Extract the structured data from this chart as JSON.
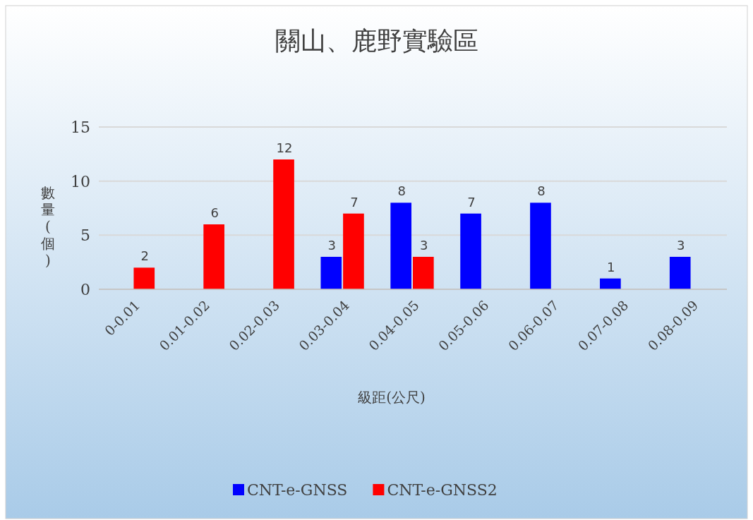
{
  "chart_data": {
    "type": "bar",
    "title": "關山、鹿野實驗區",
    "xlabel": "級距(公尺)",
    "ylabel": "數量(個)",
    "categories": [
      "0-0.01",
      "0.01-0.02",
      "0.02-0.03",
      "0.03-0.04",
      "0.04-0.05",
      "0.05-0.06",
      "0.06-0.07",
      "0.07-0.08",
      "0.08-0.09"
    ],
    "series": [
      {
        "name": "CNT-e-GNSS",
        "color": "#0000ff",
        "values": [
          null,
          null,
          null,
          3,
          8,
          7,
          8,
          1,
          3
        ]
      },
      {
        "name": "CNT-e-GNSS2",
        "color": "#ff0000",
        "values": [
          2,
          6,
          12,
          7,
          3,
          null,
          null,
          null,
          null
        ]
      }
    ],
    "ylim": [
      0,
      15
    ],
    "yticks": [
      0,
      5,
      10,
      15
    ],
    "grid": "y",
    "legend": "bottom",
    "data_labels": true
  }
}
